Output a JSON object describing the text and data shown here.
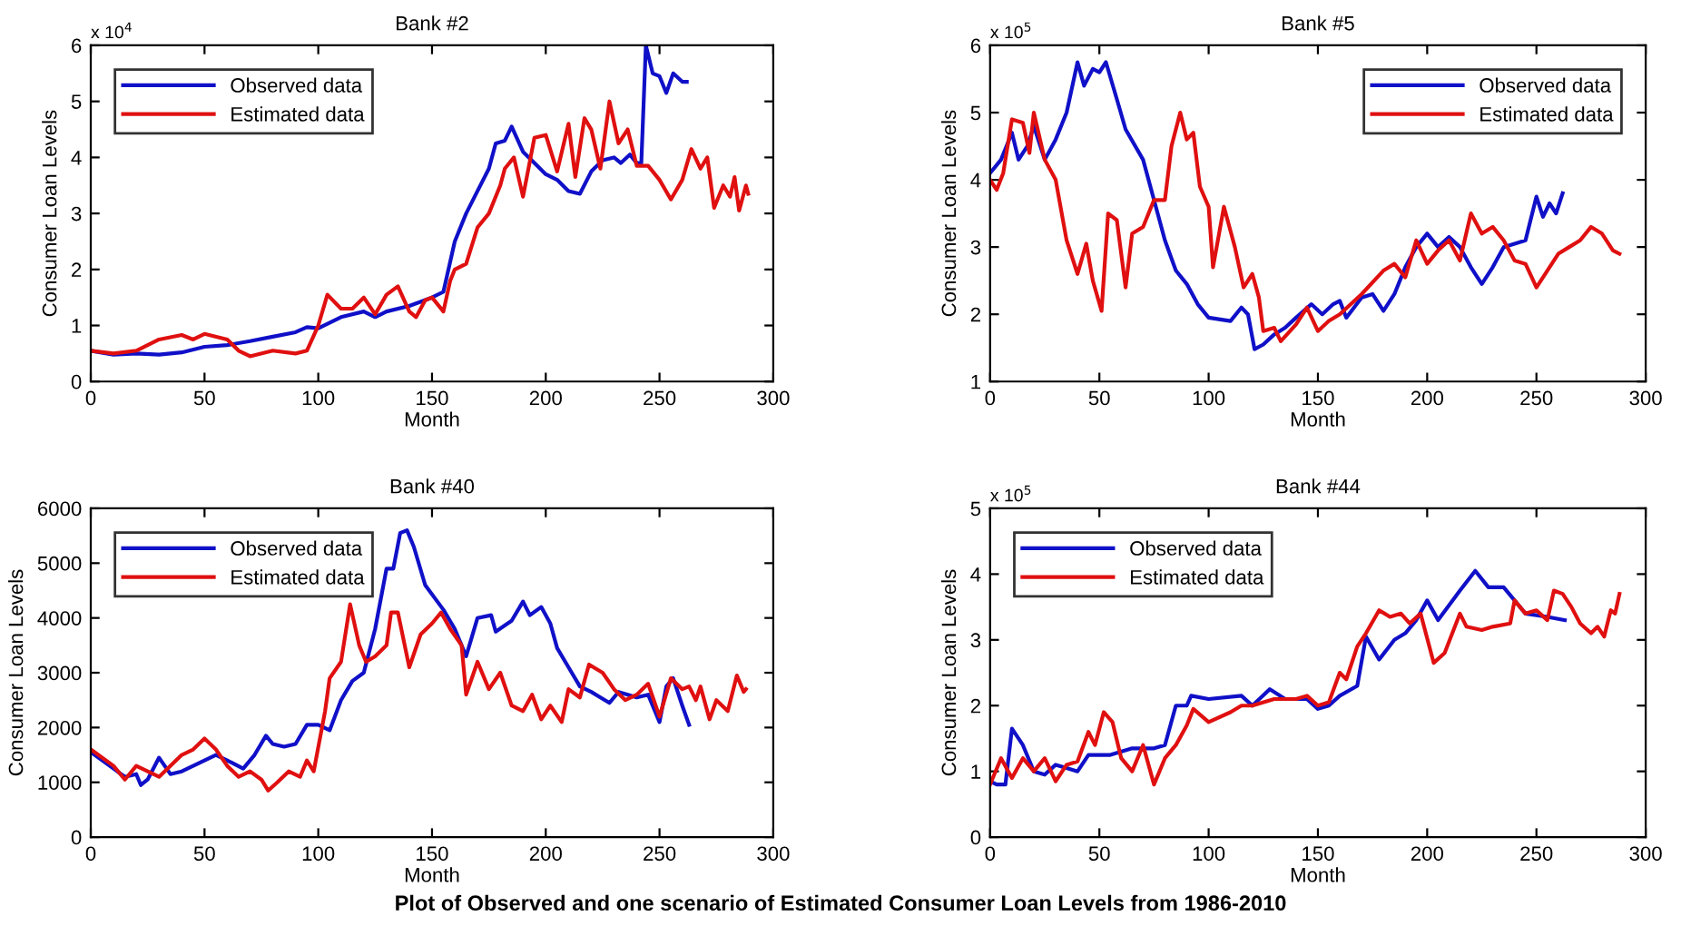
{
  "chart_data": [
    {
      "type": "line",
      "title": "Bank #2",
      "xlabel": "Month",
      "ylabel": "Consumer Loan Levels",
      "legend": "top left",
      "grid": false,
      "annotations": [
        "x 10$^{4}$"
      ],
      "xlim": [
        0,
        300
      ],
      "xticks": [
        0,
        50,
        100,
        150,
        200,
        250,
        300
      ],
      "ylim": [
        0,
        6
      ],
      "yticks": [
        0,
        1,
        2,
        3,
        4,
        5,
        6
      ],
      "series": [
        {
          "name": "Observed data",
          "color": "#1010c8",
          "x": [
            0,
            10,
            20,
            30,
            40,
            50,
            60,
            70,
            80,
            90,
            95,
            100,
            110,
            120,
            125,
            130,
            140,
            150,
            155,
            160,
            165,
            170,
            175,
            178,
            182,
            185,
            190,
            195,
            200,
            205,
            210,
            215,
            220,
            225,
            230,
            233,
            237,
            240,
            242,
            244,
            247,
            250,
            253,
            256,
            260,
            262
          ],
          "values": [
            0.55,
            0.48,
            0.5,
            0.48,
            0.52,
            0.62,
            0.65,
            0.72,
            0.8,
            0.88,
            0.97,
            0.95,
            1.15,
            1.25,
            1.15,
            1.25,
            1.35,
            1.5,
            1.6,
            2.5,
            3.0,
            3.4,
            3.8,
            4.25,
            4.3,
            4.55,
            4.1,
            3.9,
            3.7,
            3.6,
            3.4,
            3.35,
            3.75,
            3.95,
            4.0,
            3.9,
            4.05,
            3.9,
            3.9,
            6.0,
            5.5,
            5.45,
            5.15,
            5.5,
            5.35,
            5.35
          ]
        },
        {
          "name": "Estimated data",
          "color": "#e01010",
          "x": [
            0,
            10,
            20,
            30,
            40,
            45,
            50,
            60,
            65,
            70,
            80,
            90,
            95,
            100,
            104,
            110,
            115,
            120,
            125,
            130,
            135,
            140,
            143,
            147,
            150,
            155,
            158,
            160,
            165,
            170,
            175,
            180,
            182,
            186,
            190,
            195,
            200,
            205,
            210,
            213,
            217,
            220,
            224,
            228,
            232,
            236,
            240,
            245,
            250,
            255,
            260,
            264,
            268,
            271,
            274,
            278,
            281,
            283,
            285,
            288,
            289
          ],
          "values": [
            0.55,
            0.5,
            0.55,
            0.75,
            0.83,
            0.75,
            0.85,
            0.75,
            0.55,
            0.45,
            0.55,
            0.5,
            0.55,
            1.0,
            1.55,
            1.3,
            1.3,
            1.5,
            1.2,
            1.55,
            1.7,
            1.25,
            1.15,
            1.45,
            1.5,
            1.25,
            1.8,
            2.0,
            2.1,
            2.75,
            3.0,
            3.5,
            3.8,
            4.0,
            3.3,
            4.35,
            4.4,
            3.75,
            4.6,
            3.65,
            4.7,
            4.5,
            3.8,
            5.0,
            4.25,
            4.5,
            3.85,
            3.85,
            3.6,
            3.25,
            3.6,
            4.15,
            3.8,
            4.0,
            3.1,
            3.5,
            3.3,
            3.65,
            3.05,
            3.5,
            3.35
          ]
        }
      ]
    },
    {
      "type": "line",
      "title": "Bank #5",
      "xlabel": "Month",
      "ylabel": "Consumer Loan Levels",
      "legend": "top right",
      "grid": false,
      "annotations": [
        "x 10$^{5}$"
      ],
      "xlim": [
        0,
        300
      ],
      "xticks": [
        0,
        50,
        100,
        150,
        200,
        250,
        300
      ],
      "ylim": [
        1,
        6
      ],
      "yticks": [
        1,
        2,
        3,
        4,
        5,
        6
      ],
      "series": [
        {
          "name": "Observed data",
          "color": "#1010c8",
          "x": [
            0,
            5,
            10,
            13,
            17,
            20,
            25,
            30,
            35,
            40,
            43,
            47,
            50,
            53,
            58,
            62,
            70,
            75,
            80,
            85,
            90,
            95,
            100,
            110,
            115,
            118,
            121,
            125,
            130,
            135,
            140,
            147,
            152,
            157,
            160,
            163,
            170,
            175,
            180,
            185,
            190,
            195,
            200,
            205,
            210,
            215,
            220,
            225,
            230,
            235,
            245,
            250,
            253,
            256,
            259,
            262
          ],
          "values": [
            4.1,
            4.3,
            4.7,
            4.3,
            4.5,
            4.8,
            4.3,
            4.6,
            5.0,
            5.75,
            5.4,
            5.65,
            5.6,
            5.75,
            5.2,
            4.75,
            4.3,
            3.7,
            3.1,
            2.65,
            2.45,
            2.15,
            1.95,
            1.9,
            2.1,
            2.0,
            1.48,
            1.55,
            1.7,
            1.8,
            1.95,
            2.15,
            2.0,
            2.15,
            2.2,
            1.95,
            2.25,
            2.3,
            2.05,
            2.3,
            2.7,
            3.0,
            3.2,
            3.0,
            3.15,
            3.0,
            2.7,
            2.45,
            2.7,
            3.0,
            3.1,
            3.75,
            3.45,
            3.65,
            3.5,
            3.8
          ]
        },
        {
          "name": "Estimated data",
          "color": "#e01010",
          "x": [
            0,
            3,
            6,
            10,
            15,
            18,
            20,
            25,
            30,
            35,
            40,
            44,
            47,
            51,
            54,
            58,
            62,
            65,
            70,
            75,
            80,
            83,
            87,
            90,
            93,
            96,
            100,
            102,
            107,
            112,
            116,
            120,
            123,
            125,
            130,
            133,
            140,
            145,
            150,
            155,
            160,
            170,
            180,
            185,
            190,
            195,
            200,
            205,
            210,
            215,
            220,
            225,
            230,
            235,
            240,
            245,
            250,
            255,
            260,
            265,
            270,
            275,
            280,
            285,
            288
          ],
          "values": [
            4.0,
            3.85,
            4.1,
            4.9,
            4.85,
            4.4,
            5.0,
            4.3,
            4.0,
            3.1,
            2.6,
            3.05,
            2.5,
            2.05,
            3.5,
            3.4,
            2.4,
            3.2,
            3.3,
            3.7,
            3.7,
            4.5,
            5.0,
            4.6,
            4.7,
            3.9,
            3.6,
            2.7,
            3.6,
            3.0,
            2.4,
            2.6,
            2.25,
            1.75,
            1.8,
            1.6,
            1.85,
            2.1,
            1.75,
            1.9,
            2.0,
            2.3,
            2.65,
            2.75,
            2.55,
            3.1,
            2.75,
            2.95,
            3.1,
            2.8,
            3.5,
            3.2,
            3.3,
            3.1,
            2.8,
            2.75,
            2.4,
            2.65,
            2.9,
            3.0,
            3.1,
            3.3,
            3.2,
            2.95,
            2.9
          ]
        }
      ]
    },
    {
      "type": "line",
      "title": "Bank #40",
      "xlabel": "Month",
      "ylabel": "Consumer Loan Levels",
      "legend": "top left",
      "grid": false,
      "xlim": [
        0,
        300
      ],
      "xticks": [
        0,
        50,
        100,
        150,
        200,
        250,
        300
      ],
      "ylim": [
        0,
        6000
      ],
      "yticks": [
        0,
        1000,
        2000,
        3000,
        4000,
        5000,
        6000
      ],
      "series": [
        {
          "name": "Observed data",
          "color": "#1010c8",
          "x": [
            0,
            10,
            15,
            20,
            22,
            25,
            30,
            35,
            40,
            50,
            55,
            60,
            67,
            72,
            77,
            80,
            85,
            90,
            95,
            100,
            105,
            110,
            115,
            120,
            125,
            130,
            133,
            136,
            139,
            142,
            147,
            155,
            160,
            165,
            170,
            176,
            178,
            185,
            190,
            193,
            198,
            202,
            205,
            210,
            215,
            220,
            228,
            232,
            240,
            245,
            250,
            253,
            256,
            260,
            263
          ],
          "values": [
            1550,
            1250,
            1100,
            1150,
            950,
            1050,
            1450,
            1150,
            1200,
            1400,
            1500,
            1400,
            1250,
            1500,
            1850,
            1700,
            1650,
            1700,
            2050,
            2050,
            1950,
            2500,
            2850,
            3000,
            3800,
            4900,
            4900,
            5550,
            5600,
            5300,
            4600,
            4150,
            3800,
            3300,
            4000,
            4050,
            3750,
            3950,
            4300,
            4050,
            4200,
            3900,
            3450,
            3100,
            2750,
            2650,
            2450,
            2650,
            2550,
            2600,
            2100,
            2750,
            2900,
            2400,
            2050
          ]
        },
        {
          "name": "Estimated data",
          "color": "#e01010",
          "x": [
            0,
            10,
            15,
            20,
            25,
            30,
            40,
            45,
            50,
            55,
            60,
            65,
            70,
            75,
            78,
            82,
            87,
            92,
            95,
            98,
            103,
            105,
            110,
            114,
            118,
            121,
            125,
            130,
            132,
            135,
            140,
            145,
            150,
            154,
            158,
            163,
            165,
            170,
            175,
            180,
            185,
            190,
            194,
            198,
            202,
            207,
            210,
            215,
            219,
            225,
            230,
            235,
            240,
            245,
            250,
            255,
            260,
            263,
            266,
            268,
            272,
            275,
            280,
            284,
            287,
            288
          ],
          "values": [
            1600,
            1300,
            1050,
            1300,
            1200,
            1100,
            1500,
            1600,
            1800,
            1600,
            1300,
            1100,
            1200,
            1050,
            850,
            1000,
            1200,
            1100,
            1400,
            1200,
            2300,
            2900,
            3200,
            4250,
            3500,
            3200,
            3300,
            3500,
            4100,
            4100,
            3100,
            3700,
            3900,
            4100,
            3800,
            3500,
            2600,
            3200,
            2700,
            3000,
            2400,
            2300,
            2600,
            2150,
            2400,
            2100,
            2700,
            2550,
            3150,
            3000,
            2700,
            2500,
            2600,
            2800,
            2200,
            2900,
            2700,
            2750,
            2500,
            2750,
            2150,
            2500,
            2300,
            2950,
            2650,
            2700
          ]
        }
      ]
    },
    {
      "type": "line",
      "title": "Bank #44",
      "xlabel": "Month",
      "ylabel": "Consumer Loan Levels",
      "legend": "top left",
      "grid": false,
      "annotations": [
        "x 10$^{5}$",
        "Plot of Observed and one scenario of Estimated Consumer Loan Levels from 1986-2010"
      ],
      "xlim": [
        0,
        300
      ],
      "xticks": [
        0,
        50,
        100,
        150,
        200,
        250,
        300
      ],
      "ylim": [
        0,
        5
      ],
      "yticks": [
        0,
        1,
        2,
        3,
        4,
        5
      ],
      "series": [
        {
          "name": "Observed data",
          "color": "#1010c8",
          "x": [
            0,
            3,
            7,
            10,
            15,
            20,
            25,
            30,
            35,
            40,
            45,
            55,
            65,
            75,
            80,
            85,
            90,
            92,
            100,
            115,
            120,
            128,
            135,
            145,
            150,
            155,
            160,
            168,
            172,
            178,
            185,
            190,
            195,
            200,
            205,
            215,
            222,
            228,
            235,
            245,
            255,
            263
          ],
          "values": [
            0.85,
            0.8,
            0.8,
            1.65,
            1.4,
            1.0,
            0.95,
            1.1,
            1.05,
            1.0,
            1.25,
            1.25,
            1.35,
            1.35,
            1.4,
            2.0,
            2.0,
            2.15,
            2.1,
            2.15,
            2.0,
            2.25,
            2.1,
            2.1,
            1.95,
            2.0,
            2.15,
            2.3,
            3.05,
            2.7,
            3.0,
            3.1,
            3.3,
            3.6,
            3.3,
            3.75,
            4.05,
            3.8,
            3.8,
            3.4,
            3.35,
            3.3
          ]
        },
        {
          "name": "Estimated data",
          "color": "#e01010",
          "x": [
            0,
            5,
            10,
            15,
            20,
            25,
            30,
            35,
            40,
            45,
            48,
            52,
            56,
            60,
            65,
            70,
            75,
            80,
            85,
            90,
            93,
            100,
            110,
            115,
            120,
            130,
            140,
            145,
            150,
            155,
            160,
            163,
            168,
            172,
            178,
            183,
            188,
            192,
            197,
            203,
            208,
            215,
            218,
            225,
            230,
            238,
            240,
            245,
            250,
            255,
            258,
            262,
            266,
            270,
            275,
            278,
            281,
            284,
            286,
            288
          ],
          "values": [
            0.8,
            1.2,
            0.9,
            1.2,
            1.0,
            1.2,
            0.85,
            1.1,
            1.15,
            1.6,
            1.4,
            1.9,
            1.75,
            1.2,
            1.0,
            1.4,
            0.8,
            1.2,
            1.4,
            1.7,
            1.95,
            1.75,
            1.9,
            2.0,
            2.0,
            2.1,
            2.1,
            2.15,
            2.0,
            2.05,
            2.5,
            2.4,
            2.9,
            3.1,
            3.45,
            3.35,
            3.4,
            3.25,
            3.4,
            2.65,
            2.8,
            3.4,
            3.2,
            3.15,
            3.2,
            3.25,
            3.6,
            3.4,
            3.45,
            3.3,
            3.75,
            3.7,
            3.5,
            3.25,
            3.1,
            3.2,
            3.05,
            3.45,
            3.4,
            3.7
          ]
        }
      ]
    }
  ]
}
